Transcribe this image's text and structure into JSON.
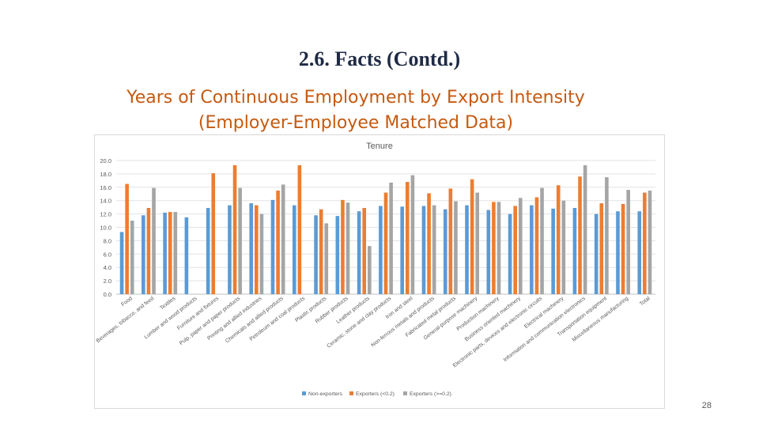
{
  "slide": {
    "title": "2.6. Facts (Contd.)",
    "heading_line1": "Years of Continuous Employment by Export Intensity",
    "heading_line2": "(Employer-Employee Matched Data)",
    "page_number": "28"
  },
  "colors": {
    "title": "#1f2a44",
    "heading": "#c55a11",
    "series": [
      "#5b9bd5",
      "#ed7d31",
      "#a5a5a5"
    ]
  },
  "chart_data": {
    "type": "bar",
    "title": "Tenure",
    "xlabel": "",
    "ylabel": "",
    "ylim": [
      0,
      20
    ],
    "yticks": [
      "0.0",
      "2.0",
      "4.0",
      "6.0",
      "8.0",
      "10.0",
      "12.0",
      "14.0",
      "16.0",
      "18.0",
      "20.0"
    ],
    "grid": true,
    "legend_position": "bottom",
    "categories": [
      "Food",
      "Beverages, tobacco, and feed",
      "Textiles",
      "Lumber and wood products",
      "Furniture and fixtures",
      "Pulp, paper and paper products",
      "Printing and allied industries",
      "Chemicals and allied products",
      "Petroleum and coal products",
      "Plastic products",
      "Rubber products",
      "Leather products",
      "Ceramic, stone and clay products",
      "Iron and steel",
      "Non-ferrous metals and products",
      "Fabricated metal products",
      "General-purpose machinery",
      "Production machinery",
      "Business oriented machinery",
      "Electronic parts, devices and electronic circuits",
      "Electrical machinery",
      "Information and communication electronics",
      "Transportation equipment",
      "Miscellaneous manufacturing",
      "Total"
    ],
    "series": [
      {
        "name": "Non-exporters",
        "values": [
          9.3,
          11.8,
          12.2,
          11.5,
          12.9,
          13.3,
          13.6,
          14.1,
          13.3,
          11.8,
          11.7,
          12.4,
          13.2,
          13.1,
          13.2,
          12.7,
          13.3,
          12.6,
          12.0,
          13.3,
          12.8,
          12.9,
          12.0,
          12.4,
          12.4
        ]
      },
      {
        "name": "Exporters (<0.2)",
        "values": [
          16.5,
          12.9,
          12.3,
          null,
          18.1,
          19.3,
          13.3,
          15.5,
          19.3,
          12.7,
          14.1,
          12.9,
          15.2,
          16.8,
          15.1,
          15.8,
          17.2,
          13.8,
          13.2,
          14.5,
          16.3,
          17.6,
          13.6,
          13.5,
          15.2
        ]
      },
      {
        "name": "Exporters (>=0.2)",
        "values": [
          11.0,
          15.9,
          12.3,
          null,
          null,
          15.9,
          12.0,
          16.4,
          null,
          10.6,
          13.7,
          7.2,
          16.7,
          17.8,
          13.3,
          13.9,
          15.2,
          13.8,
          14.4,
          15.9,
          14.0,
          19.3,
          17.5,
          15.6,
          15.5
        ]
      }
    ]
  }
}
